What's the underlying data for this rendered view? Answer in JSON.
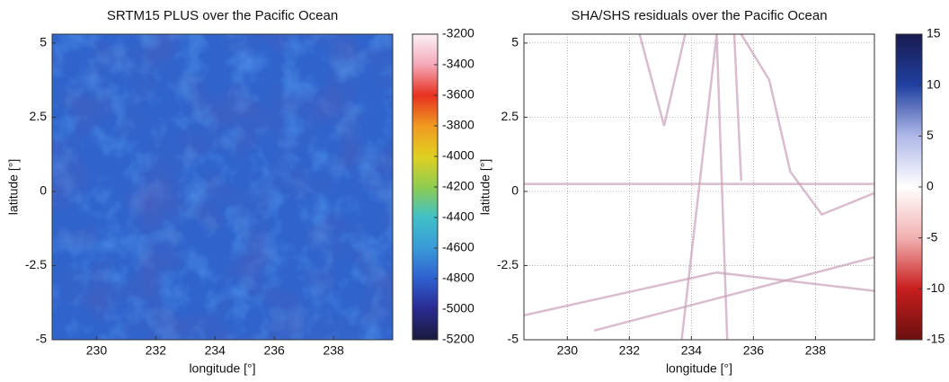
{
  "chart_data": [
    {
      "type": "heatmap",
      "title": "SRTM15 PLUS over the Pacific Ocean",
      "x_label": "longitude [°]",
      "y_label": "latitude [°]",
      "xlim": [
        228.5,
        240
      ],
      "xticks": [
        230,
        232,
        234,
        236,
        238
      ],
      "ylim": [
        -5,
        5.3
      ],
      "yticks": [
        -5,
        -2.5,
        0,
        2.5,
        5
      ],
      "grid": false,
      "clim": [
        -5200,
        -3200
      ],
      "cticks": [
        -5200,
        -5000,
        -4800,
        -4600,
        -4400,
        -4200,
        -4000,
        -3800,
        -3600,
        -3400,
        -3200
      ],
      "colormap": [
        "#1a1a3c",
        "#2a2a90",
        "#2f5fd0",
        "#3a9ad8",
        "#3fc0c8",
        "#8fcc50",
        "#e0d020",
        "#f09a20",
        "#e83020",
        "#f4a8b8",
        "#faf2f8"
      ]
    },
    {
      "type": "heatmap",
      "title": "SHA/SHS residuals over the Pacific Ocean",
      "x_label": "longitude [°]",
      "y_label": "latitude [°]",
      "xlim": [
        228.6,
        239.9
      ],
      "xticks": [
        230,
        232,
        234,
        236,
        238
      ],
      "ylim": [
        -5,
        5.3
      ],
      "yticks": [
        -5,
        -2.5,
        0,
        2.5,
        5
      ],
      "grid": true,
      "clim": [
        -15,
        15
      ],
      "cticks": [
        -15,
        -10,
        -5,
        0,
        5,
        10,
        15
      ],
      "colormap": [
        "#6b0f0f",
        "#c81e1e",
        "#f2b0b0",
        "#ffffff",
        "#b0b8e8",
        "#2040a0",
        "#1a1a50"
      ]
    }
  ]
}
